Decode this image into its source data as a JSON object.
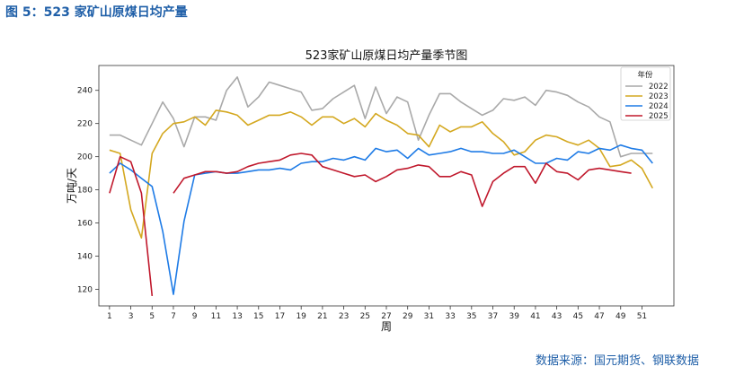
{
  "figure_title": "图 5：523 家矿山原煤日均产量",
  "source_text": "数据来源：国元期货、钢联数据",
  "chart_data": {
    "type": "line",
    "title": "523家矿山原煤日均产量季节图",
    "xlabel": "周",
    "ylabel": "万吨/天",
    "xlim": [
      0,
      54
    ],
    "ylim": [
      110,
      255
    ],
    "xticks": [
      1,
      3,
      5,
      7,
      9,
      11,
      13,
      15,
      17,
      19,
      21,
      23,
      25,
      27,
      29,
      31,
      33,
      35,
      37,
      39,
      41,
      43,
      45,
      47,
      49,
      51
    ],
    "yticks": [
      120,
      140,
      160,
      180,
      200,
      220,
      240
    ],
    "grid": false,
    "legend_title": "年份",
    "legend_position": "top-right",
    "series": [
      {
        "name": "2022",
        "color": "#a9a9a9",
        "x": [
          1,
          2,
          3,
          4,
          5,
          6,
          7,
          8,
          9,
          10,
          11,
          12,
          13,
          14,
          15,
          16,
          17,
          18,
          19,
          20,
          21,
          22,
          23,
          24,
          25,
          26,
          27,
          28,
          29,
          30,
          31,
          32,
          33,
          34,
          35,
          36,
          37,
          38,
          39,
          40,
          41,
          42,
          43,
          44,
          45,
          46,
          47,
          48,
          49,
          50,
          51,
          52
        ],
        "y": [
          213,
          213,
          210,
          207,
          220,
          233,
          223,
          206,
          224,
          224,
          222,
          240,
          248,
          230,
          236,
          245,
          243,
          241,
          239,
          228,
          229,
          235,
          239,
          243,
          223,
          242,
          226,
          236,
          233,
          210,
          225,
          238,
          238,
          233,
          229,
          225,
          228,
          235,
          234,
          236,
          231,
          240,
          239,
          237,
          233,
          230,
          224,
          221,
          200,
          202,
          202,
          202
        ]
      },
      {
        "name": "2023",
        "color": "#d4a820",
        "x": [
          1,
          2,
          3,
          4,
          5,
          6,
          7,
          8,
          9,
          10,
          11,
          12,
          13,
          14,
          15,
          16,
          17,
          18,
          19,
          20,
          21,
          22,
          23,
          24,
          25,
          26,
          27,
          28,
          29,
          30,
          31,
          32,
          33,
          34,
          35,
          36,
          37,
          38,
          39,
          40,
          41,
          42,
          43,
          44,
          45,
          46,
          47,
          48,
          49,
          50,
          51,
          52
        ],
        "y": [
          204,
          202,
          168,
          151,
          202,
          214,
          220,
          221,
          224,
          219,
          228,
          227,
          225,
          219,
          222,
          225,
          225,
          227,
          224,
          219,
          224,
          224,
          220,
          223,
          218,
          226,
          222,
          219,
          214,
          213,
          206,
          219,
          215,
          218,
          218,
          221,
          214,
          209,
          201,
          203,
          210,
          213,
          212,
          209,
          207,
          210,
          205,
          194,
          195,
          198,
          193,
          181
        ]
      },
      {
        "name": "2024",
        "color": "#1e7be6",
        "x": [
          1,
          2,
          3,
          4,
          5,
          6,
          7,
          8,
          9,
          10,
          11,
          12,
          13,
          14,
          15,
          16,
          17,
          18,
          19,
          20,
          21,
          22,
          23,
          24,
          25,
          26,
          27,
          28,
          29,
          30,
          31,
          32,
          33,
          34,
          35,
          36,
          37,
          38,
          39,
          40,
          41,
          42,
          43,
          44,
          45,
          46,
          47,
          48,
          49,
          50,
          51,
          52
        ],
        "y": [
          190,
          196,
          192,
          187,
          182,
          155,
          117,
          161,
          189,
          190,
          191,
          190,
          190,
          191,
          192,
          192,
          193,
          192,
          196,
          197,
          197,
          199,
          198,
          200,
          198,
          205,
          203,
          204,
          199,
          205,
          201,
          202,
          203,
          205,
          203,
          203,
          202,
          202,
          204,
          200,
          196,
          196,
          199,
          198,
          203,
          202,
          205,
          204,
          207,
          205,
          204,
          196
        ]
      },
      {
        "name": "2025",
        "color": "#c0182c",
        "segments": [
          {
            "x": [
              1,
              2,
              3,
              4,
              5
            ],
            "y": [
              178,
              200,
              197,
              178,
              116
            ]
          },
          {
            "x": [
              7,
              8,
              9,
              10,
              11,
              12,
              13,
              14,
              15,
              16,
              17,
              18,
              19,
              20,
              21,
              22,
              23,
              24,
              25,
              26,
              27,
              28,
              29,
              30,
              31,
              32,
              33,
              34,
              35,
              36,
              37,
              38,
              39,
              40,
              41,
              42,
              43,
              44,
              45,
              46,
              47,
              48,
              49,
              50
            ],
            "y": [
              178,
              187,
              189,
              191,
              191,
              190,
              191,
              194,
              196,
              197,
              198,
              201,
              202,
              201,
              194,
              192,
              190,
              188,
              189,
              185,
              188,
              192,
              193,
              195,
              194,
              188,
              188,
              191,
              189,
              170,
              185,
              190,
              194,
              194,
              184,
              196,
              191,
              190,
              186,
              192,
              193,
              192,
              191,
              190
            ]
          }
        ]
      }
    ]
  }
}
